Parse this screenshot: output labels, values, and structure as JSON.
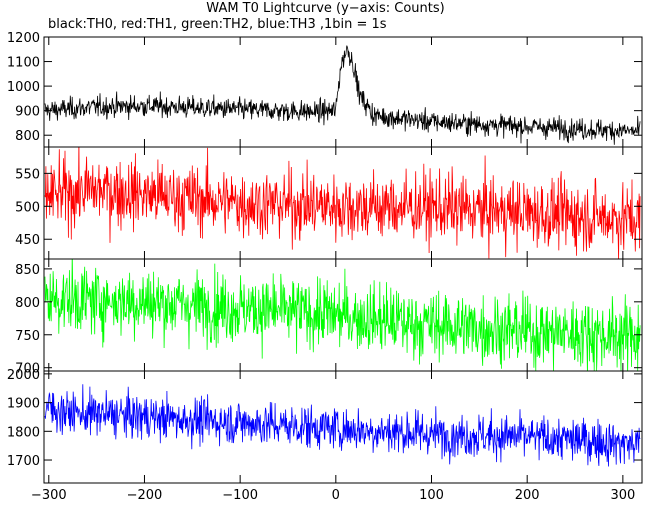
{
  "title": "WAM T0 Lightcurve (y−axis: Counts)",
  "subtitle": "black:TH0, red:TH1, green:TH2, blue:TH3 ,1bin = 1s",
  "chart_data": {
    "type": "line",
    "x_range": [
      -305,
      320
    ],
    "x_ticks": [
      -300,
      -200,
      -100,
      0,
      100,
      200,
      300
    ],
    "x_tick_labels": [
      "−300",
      "−200",
      "−100",
      "0",
      "100",
      "200",
      "300"
    ],
    "panels": [
      {
        "name": "TH0",
        "color": "#000000",
        "ylim": [
          752,
          1200
        ],
        "y_ticks": [
          800,
          900,
          1000,
          1100,
          1200
        ],
        "y_tick_labels": [
          "800",
          "900",
          "1000",
          "1100",
          "1200"
        ],
        "trend": [
          [
            -305,
            900
          ],
          [
            -250,
            915
          ],
          [
            -200,
            920
          ],
          [
            -100,
            905
          ],
          [
            -20,
            895
          ],
          [
            0,
            900
          ],
          [
            5,
            1080
          ],
          [
            12,
            1155
          ],
          [
            18,
            1095
          ],
          [
            25,
            960
          ],
          [
            40,
            880
          ],
          [
            100,
            855
          ],
          [
            200,
            835
          ],
          [
            320,
            815
          ]
        ],
        "noise": 22
      },
      {
        "name": "TH1",
        "color": "#ff0000",
        "ylim": [
          420,
          590
        ],
        "y_ticks": [
          450,
          500,
          550
        ],
        "y_tick_labels": [
          "450",
          "500",
          "550"
        ],
        "trend": [
          [
            -305,
            515
          ],
          [
            -250,
            525
          ],
          [
            -200,
            518
          ],
          [
            -100,
            505
          ],
          [
            0,
            500
          ],
          [
            100,
            498
          ],
          [
            200,
            490
          ],
          [
            320,
            480
          ]
        ],
        "noise": 26
      },
      {
        "name": "TH2",
        "color": "#00ff00",
        "ylim": [
          695,
          865
        ],
        "y_ticks": [
          700,
          750,
          800,
          850
        ],
        "y_tick_labels": [
          "700",
          "750",
          "800",
          "850"
        ],
        "trend": [
          [
            -305,
            805
          ],
          [
            -200,
            800
          ],
          [
            -100,
            790
          ],
          [
            0,
            780
          ],
          [
            100,
            765
          ],
          [
            200,
            755
          ],
          [
            320,
            748
          ]
        ],
        "noise": 26
      },
      {
        "name": "TH3",
        "color": "#0000ff",
        "ylim": [
          1620,
          2010
        ],
        "y_ticks": [
          1700,
          1800,
          1900,
          2000
        ],
        "y_tick_labels": [
          "1700",
          "1800",
          "1900",
          "2000"
        ],
        "trend": [
          [
            -305,
            1885
          ],
          [
            -280,
            1865
          ],
          [
            -200,
            1850
          ],
          [
            -100,
            1830
          ],
          [
            0,
            1810
          ],
          [
            100,
            1790
          ],
          [
            200,
            1780
          ],
          [
            320,
            1755
          ]
        ],
        "noise": 38
      }
    ]
  }
}
